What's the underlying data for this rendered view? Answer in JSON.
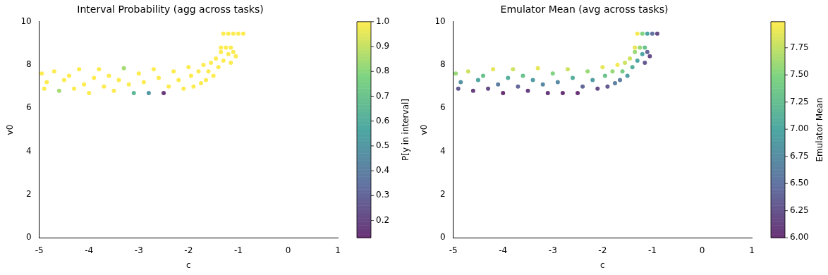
{
  "chart_data": [
    {
      "type": "scatter",
      "title": "Interval Probability (agg across tasks)",
      "xlabel": "c",
      "ylabel": "v0",
      "clabel": "P[y in interval]",
      "xlim": [
        -5,
        1
      ],
      "ylim": [
        0,
        10
      ],
      "xticks": [
        -5,
        -4,
        -3,
        -2,
        -1,
        0,
        1
      ],
      "yticks": [
        0,
        2,
        4,
        6,
        8,
        10
      ],
      "clim": [
        0.13,
        1.0
      ],
      "cticks": [
        0.2,
        0.3,
        0.4,
        0.5,
        0.6,
        0.7,
        0.8,
        0.9,
        {
          "value": 1,
          "label": "1.0"
        }
      ],
      "grid": false,
      "marker": "circle",
      "x": [
        -4.95,
        -4.9,
        -4.85,
        -4.7,
        -4.6,
        -4.5,
        -4.4,
        -4.3,
        -4.2,
        -4.1,
        -4.0,
        -3.9,
        -3.8,
        -3.7,
        -3.6,
        -3.5,
        -3.4,
        -3.3,
        -3.2,
        -3.1,
        -3.0,
        -2.9,
        -2.8,
        -2.7,
        -2.6,
        -2.5,
        -2.4,
        -2.3,
        -2.2,
        -2.1,
        -2.0,
        -1.95,
        -1.9,
        -1.8,
        -1.75,
        -1.7,
        -1.65,
        -1.6,
        -1.55,
        -1.5,
        -1.45,
        -1.4,
        -1.35,
        -1.3,
        -1.2,
        -1.15,
        -1.1,
        -1.05,
        -1.35,
        -1.25,
        -1.15,
        -1.3,
        -1.2,
        -1.1,
        -1.0,
        -0.9
      ],
      "values": [
        7.6,
        6.9,
        7.2,
        7.7,
        6.8,
        7.3,
        7.5,
        6.9,
        7.8,
        7.1,
        6.7,
        7.4,
        7.8,
        7.0,
        7.5,
        6.8,
        7.3,
        7.85,
        7.1,
        6.7,
        7.6,
        7.2,
        6.7,
        7.8,
        7.4,
        6.7,
        7.0,
        7.7,
        7.3,
        6.9,
        7.9,
        7.5,
        7.0,
        7.7,
        7.15,
        8.0,
        7.3,
        7.7,
        8.1,
        7.5,
        8.3,
        7.9,
        8.6,
        8.2,
        8.5,
        8.1,
        8.6,
        8.4,
        8.8,
        8.8,
        8.8,
        9.45,
        9.45,
        9.45,
        9.45,
        9.45
      ],
      "cvalues": [
        1,
        1,
        1,
        1,
        0.85,
        1,
        1,
        1,
        1,
        1,
        1,
        1,
        1,
        1,
        1,
        1,
        1,
        0.85,
        1,
        0.65,
        1,
        1,
        0.5,
        1,
        1,
        0.15,
        1,
        1,
        1,
        1,
        1,
        1,
        1,
        1,
        1,
        1,
        1,
        1,
        1,
        1,
        1,
        1,
        1,
        1,
        1,
        1,
        1,
        1,
        1,
        1,
        1,
        1,
        1,
        1,
        1,
        1
      ]
    },
    {
      "type": "scatter",
      "title": "Emulator Mean (avg across tasks)",
      "xlabel": "c",
      "ylabel": "v0",
      "clabel": "Emulator Mean",
      "xlim": [
        -5,
        1
      ],
      "ylim": [
        0,
        10
      ],
      "xticks": [
        -5,
        -4,
        -3,
        -2,
        -1,
        0,
        1
      ],
      "yticks": [
        0,
        2,
        4,
        6,
        8,
        10
      ],
      "clim": [
        6.0,
        7.99
      ],
      "cticks": [
        {
          "value": 6,
          "label": "6.00"
        },
        6.25,
        {
          "value": 6.5,
          "label": "6.50"
        },
        6.75,
        {
          "value": 7,
          "label": "7.00"
        },
        7.25,
        {
          "value": 7.5,
          "label": "7.50"
        },
        7.75
      ],
      "grid": false,
      "marker": "circle",
      "x": [
        -4.95,
        -4.9,
        -4.85,
        -4.7,
        -4.6,
        -4.5,
        -4.4,
        -4.3,
        -4.2,
        -4.1,
        -4.0,
        -3.9,
        -3.8,
        -3.7,
        -3.6,
        -3.5,
        -3.4,
        -3.3,
        -3.2,
        -3.1,
        -3.0,
        -2.9,
        -2.8,
        -2.7,
        -2.6,
        -2.5,
        -2.4,
        -2.3,
        -2.2,
        -2.1,
        -2.0,
        -1.95,
        -1.9,
        -1.8,
        -1.75,
        -1.7,
        -1.65,
        -1.6,
        -1.55,
        -1.5,
        -1.45,
        -1.4,
        -1.35,
        -1.3,
        -1.2,
        -1.15,
        -1.1,
        -1.05,
        -1.35,
        -1.25,
        -1.15,
        -1.3,
        -1.2,
        -1.1,
        -1.0,
        -0.9
      ],
      "values": [
        7.6,
        6.9,
        7.2,
        7.7,
        6.8,
        7.3,
        7.5,
        6.9,
        7.8,
        7.1,
        6.7,
        7.4,
        7.8,
        7.0,
        7.5,
        6.8,
        7.3,
        7.85,
        7.1,
        6.7,
        7.6,
        7.2,
        6.7,
        7.8,
        7.4,
        6.7,
        7.0,
        7.7,
        7.3,
        6.9,
        7.9,
        7.5,
        7.0,
        7.7,
        7.15,
        8.0,
        7.3,
        7.7,
        8.1,
        7.5,
        8.3,
        7.9,
        8.6,
        8.2,
        8.5,
        8.1,
        8.6,
        8.4,
        8.8,
        8.8,
        8.8,
        9.45,
        9.45,
        9.45,
        9.45,
        9.45
      ],
      "cvalues": [
        7.6,
        6.3,
        6.8,
        7.8,
        6.1,
        7.0,
        7.3,
        6.2,
        7.9,
        6.6,
        6.0,
        7.1,
        7.8,
        6.4,
        7.3,
        6.1,
        6.9,
        7.9,
        6.7,
        6.05,
        7.5,
        6.7,
        6.0,
        7.8,
        7.1,
        6.0,
        6.4,
        7.6,
        6.9,
        6.2,
        7.9,
        7.3,
        6.3,
        7.6,
        6.6,
        7.95,
        6.6,
        7.4,
        7.8,
        6.9,
        7.8,
        7.1,
        7.6,
        7.0,
        7.0,
        6.3,
        6.4,
        6.2,
        7.9,
        7.6,
        7.3,
        7.95,
        7.5,
        7.0,
        6.5,
        6.2
      ]
    }
  ]
}
